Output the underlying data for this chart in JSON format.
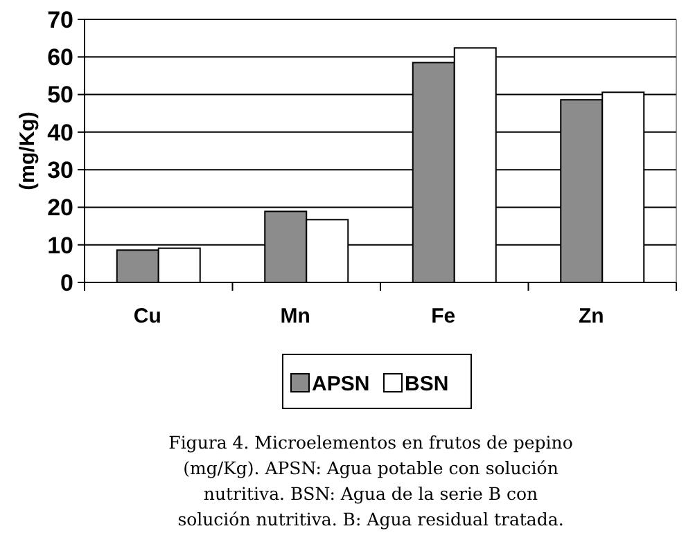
{
  "chart_data": {
    "type": "bar",
    "ylabel": "(mg/Kg)",
    "categories": [
      "Cu",
      "Mn",
      "Fe",
      "Zn"
    ],
    "series": [
      {
        "name": "APSN",
        "color": "#8c8c8c",
        "values": [
          8.6,
          18.9,
          58.5,
          48.6
        ]
      },
      {
        "name": "BSN",
        "color": "#ffffff",
        "values": [
          9.1,
          16.7,
          62.4,
          50.6
        ]
      }
    ],
    "ylim": [
      0,
      70
    ],
    "yticks": [
      0,
      10,
      20,
      30,
      40,
      50,
      60,
      70
    ],
    "grid": "y",
    "legend": "bottom",
    "annotations": [
      "Figura 4. Microelementos en frutos de pepino (mg/Kg). APSN: Agua potable con solución nutritiva. BSN: Agua de la serie B con solución nutritiva. B: Agua residual tratada."
    ]
  }
}
